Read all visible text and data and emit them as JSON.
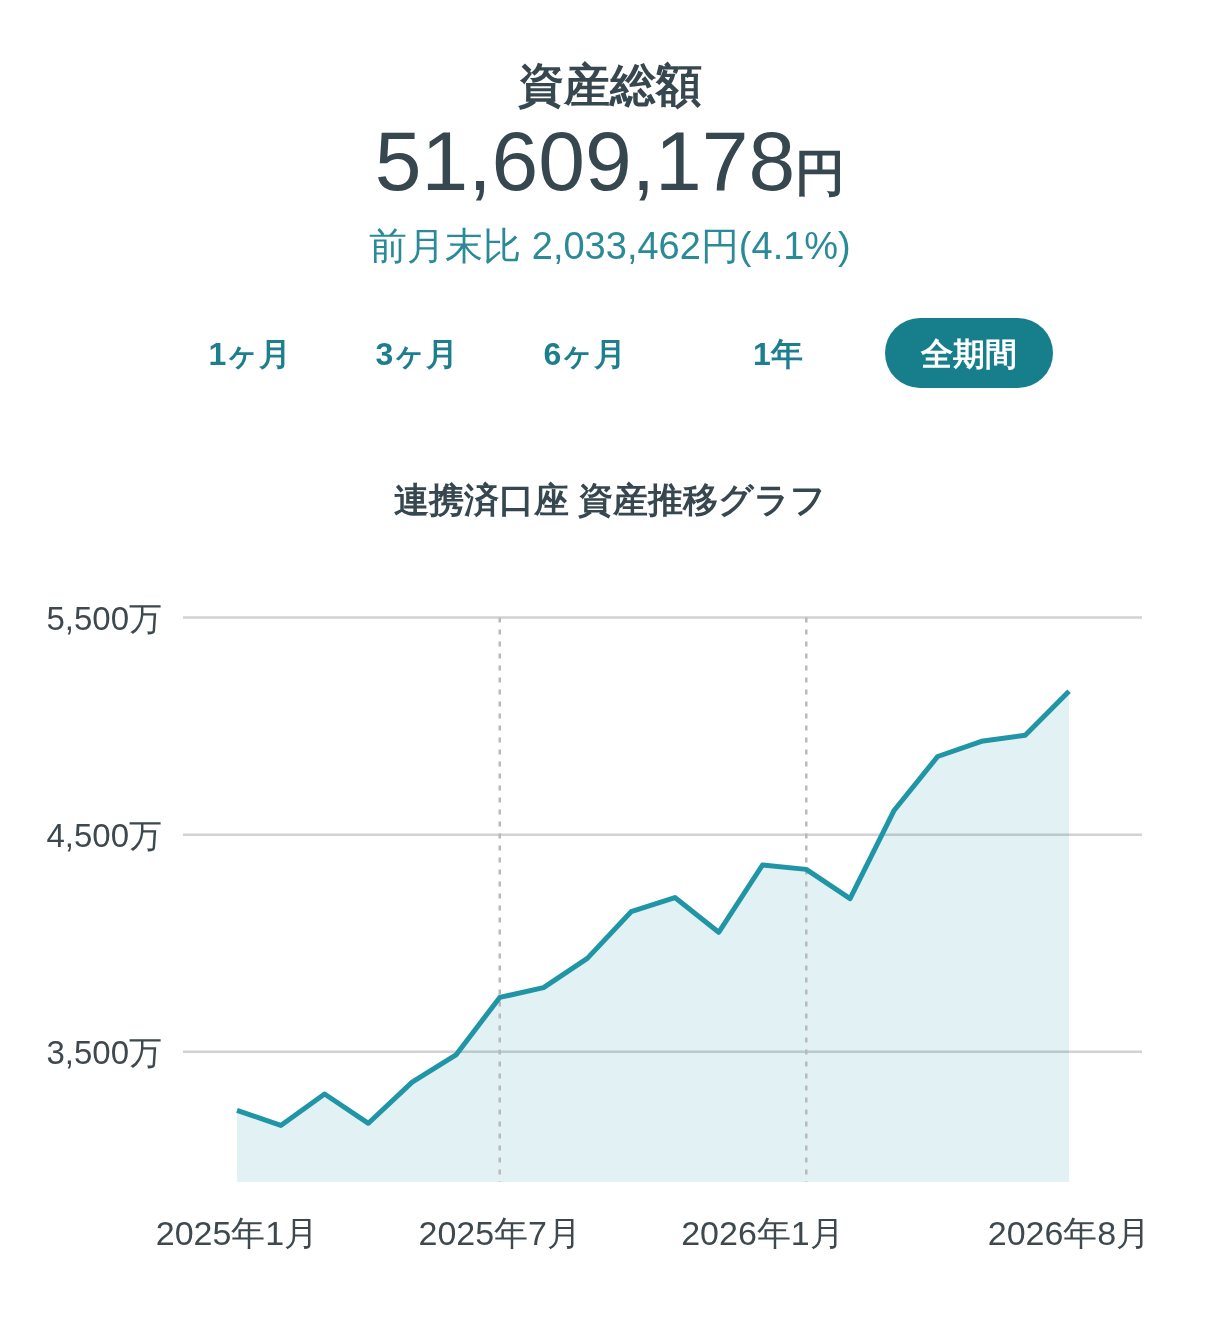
{
  "chart_data": [
    {
      "type": "other",
      "title": "資産総額",
      "annotations": [
        "51,609,178円",
        "前月末比 2,033,462円(4.1%)",
        "1ヶ月",
        "3ヶ月",
        "6ヶ月",
        "1年",
        "全期間"
      ]
    },
    {
      "type": "area",
      "title": "連携済口座 資産推移グラフ",
      "x": [
        "2025-01",
        "2025-02",
        "2025-03",
        "2025-04",
        "2025-05",
        "2025-06",
        "2025-07",
        "2025-08",
        "2025-09",
        "2025-10",
        "2025-11",
        "2025-12",
        "2026-01",
        "2026-02",
        "2026-03",
        "2026-04",
        "2026-05",
        "2026-06",
        "2026-07",
        "2026-08"
      ],
      "series": [
        {
          "color": "#1f95a6",
          "values": [
            3230,
            3160,
            3305,
            3170,
            3360,
            3485,
            3750,
            3795,
            3930,
            4145,
            4210,
            4050,
            4360,
            4340,
            4205,
            4610,
            4860,
            4930,
            4958,
            5161
          ]
        }
      ],
      "xlim": [
        "2024-11-24",
        "2026-09-21"
      ],
      "xticks": [
        {
          "value": "2025-01",
          "label": "2025年1月"
        },
        {
          "value": "2025-07",
          "label": "2025年7月"
        },
        {
          "value": "2026-01",
          "label": "2026年1月"
        },
        {
          "value": "2026-08",
          "label": "2026年8月"
        }
      ],
      "ylim": [
        2900,
        5500
      ],
      "yticks": [
        {
          "value": 3500,
          "label": "3,500万"
        },
        {
          "value": 4500,
          "label": "4,500万"
        },
        {
          "value": 5500,
          "label": "5,500万"
        }
      ],
      "grid": "y",
      "ref_lines": [
        {
          "axis": "x",
          "value": "2025-07",
          "color": "#b9b9b9",
          "line_style": "dashed"
        },
        {
          "axis": "x",
          "value": "2026-02",
          "color": "#b9b9b9",
          "line_style": "dashed"
        }
      ]
    }
  ]
}
